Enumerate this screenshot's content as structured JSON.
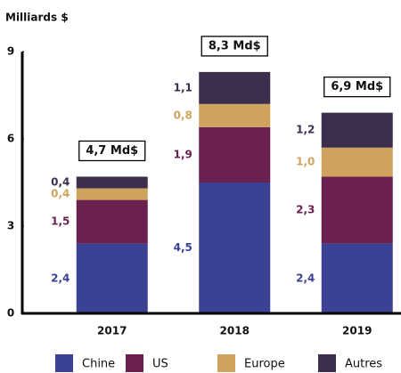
{
  "chart_data": {
    "type": "stacked_bar",
    "y_axis_label": "Milliards $",
    "categories": [
      "2017",
      "2018",
      "2019"
    ],
    "series": [
      {
        "name": "Chine",
        "color": "#3b4294",
        "values": [
          2.4,
          4.5,
          2.4
        ],
        "value_labels": [
          "2,4",
          "4,5",
          "2,4"
        ]
      },
      {
        "name": "US",
        "color": "#6b2150",
        "values": [
          1.5,
          1.9,
          2.3
        ],
        "value_labels": [
          "1,5",
          "1,9",
          "2,3"
        ]
      },
      {
        "name": "Europe",
        "color": "#cfa35e",
        "values": [
          0.4,
          0.8,
          1.0
        ],
        "value_labels": [
          "0,4",
          "0,8",
          "1,0"
        ]
      },
      {
        "name": "Autres",
        "color": "#3d2e4e",
        "values": [
          0.4,
          1.1,
          1.2
        ],
        "value_labels": [
          "0,4",
          "1,1",
          "1,2"
        ]
      }
    ],
    "annotations": [
      "4,7 Md$",
      "8,3 Md$",
      "6,9 Md$"
    ],
    "ylim": [
      0,
      9
    ],
    "yticks": [
      0,
      3,
      6,
      9
    ],
    "grid": false,
    "legend": "bottom"
  }
}
